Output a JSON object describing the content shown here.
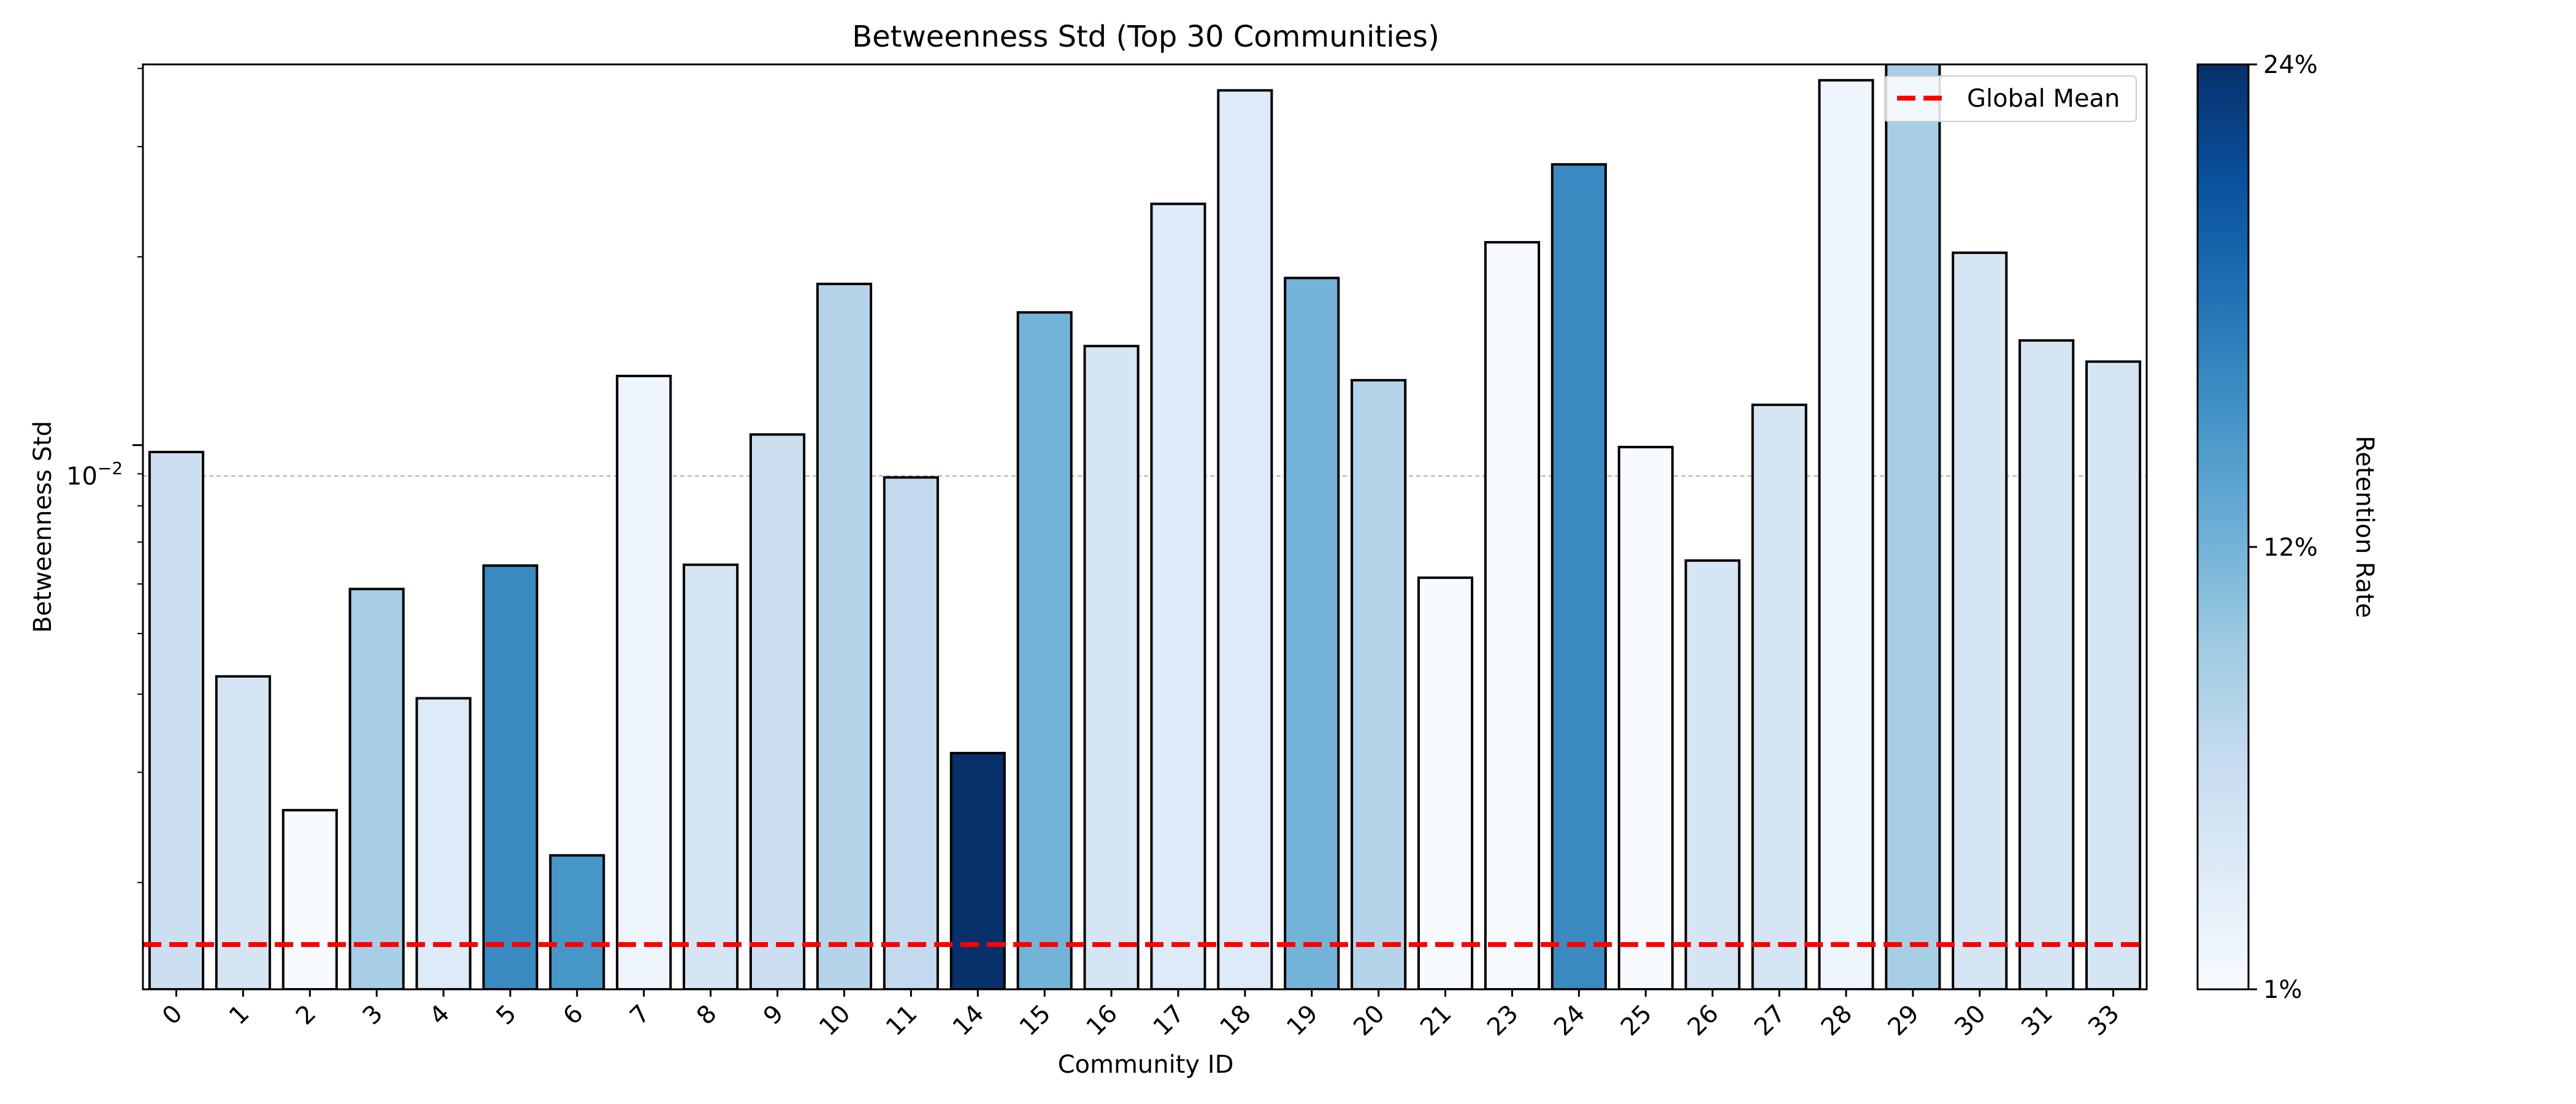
{
  "chart_data": {
    "type": "bar",
    "title": "Betweenness Std (Top 30 Communities)",
    "xlabel": "Community ID",
    "ylabel": "Betweenness Std",
    "yscale": "log",
    "ylim": [
      0.00135,
      0.0406
    ],
    "y_ticks": [
      {
        "value": 0.01,
        "label": "10−2"
      }
    ],
    "grid": "y-major-dashed",
    "legend": {
      "position": "top-right",
      "entries": [
        "Global Mean"
      ]
    },
    "categories": [
      "0",
      "1",
      "2",
      "3",
      "4",
      "5",
      "6",
      "7",
      "8",
      "9",
      "10",
      "11",
      "14",
      "15",
      "16",
      "17",
      "18",
      "19",
      "20",
      "21",
      "23",
      "24",
      "25",
      "26",
      "27",
      "28",
      "29",
      "30",
      "31",
      "33"
    ],
    "values": [
      0.00975,
      0.00427,
      0.00261,
      0.00589,
      0.00394,
      0.00642,
      0.00221,
      0.0129,
      0.00644,
      0.0104,
      0.0181,
      0.00888,
      0.00322,
      0.0163,
      0.0144,
      0.0243,
      0.0369,
      0.0185,
      0.0127,
      0.00614,
      0.0211,
      0.0281,
      0.00993,
      0.00654,
      0.0116,
      0.0383,
      0.0446,
      0.0203,
      0.0147,
      0.0136
    ],
    "retention_rate": [
      0.06,
      0.05,
      0.01,
      0.09,
      0.04,
      0.16,
      0.15,
      0.02,
      0.05,
      0.06,
      0.08,
      0.07,
      0.24,
      0.12,
      0.05,
      0.04,
      0.04,
      0.12,
      0.08,
      0.01,
      0.01,
      0.16,
      0.01,
      0.05,
      0.05,
      0.02,
      0.09,
      0.05,
      0.05,
      0.05
    ],
    "global_mean": {
      "label": "Global Mean",
      "value": 0.00165,
      "color": "#ff0000"
    },
    "colorbar": {
      "label": "Retention Rate",
      "min": 0.01,
      "max": 0.24,
      "ticks": [
        "1%",
        "12%",
        "24%"
      ],
      "colormap": "Blues"
    }
  }
}
